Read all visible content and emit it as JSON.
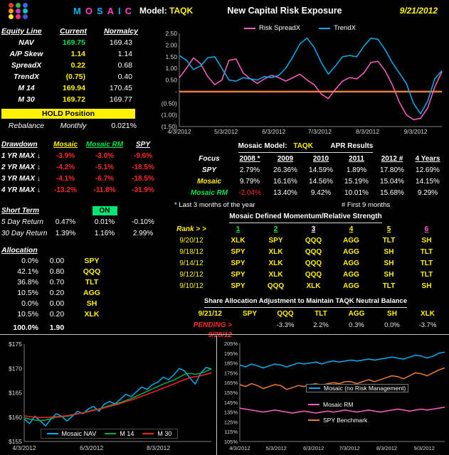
{
  "header": {
    "logo_dots": [
      "#e33b2e",
      "#3bb54a",
      "#3366ff",
      "#ff9900",
      "#c338c3",
      "#00c7be",
      "#ffe333",
      "#ff2d78",
      "#4455dd"
    ],
    "brand_letters": [
      {
        "ch": "M",
        "c": "#00B0F0"
      },
      {
        "ch": "O",
        "c": "#FF40C4"
      },
      {
        "ch": "S",
        "c": "#00B0F0"
      },
      {
        "ch": "A",
        "c": "#FF40C4"
      },
      {
        "ch": "I",
        "c": "#00B0F0"
      },
      {
        "ch": "C",
        "c": "#FF40C4"
      }
    ],
    "model_label": "Model:",
    "model_value": "TAQK",
    "title": "New Capital Risk Exposure",
    "date": "9/21/2012"
  },
  "equity": {
    "col_headers": [
      "Equity Line",
      "Current",
      "Normalcy"
    ],
    "rows": [
      {
        "label": "NAV",
        "current": "169.75",
        "normal": "169.43",
        "cc": "green"
      },
      {
        "label": "A/P Skew",
        "current": "1.14",
        "normal": "1.14",
        "cc": "yellow"
      },
      {
        "label": "SpreadX",
        "current": "0.22",
        "normal": "0.68",
        "cc": "yellow"
      },
      {
        "label": "TrendX",
        "current": "(0.75)",
        "normal": "0.40",
        "cc": "yellow"
      },
      {
        "label": "M 14",
        "current": "169.94",
        "normal": "170.45",
        "cc": "yellow"
      },
      {
        "label": "M 30",
        "current": "169.72",
        "normal": "169.77",
        "cc": "yellow"
      }
    ],
    "hold_banner": "HOLD Position",
    "hold_bg": "#FFF200",
    "rebalance_label": "Rebalance",
    "rebalance_mode": "Monthly",
    "rebalance_value": "0.021%"
  },
  "drawdown": {
    "col_headers": [
      "Drawdown",
      "Mosaic",
      "Mosaic RM",
      "SPY"
    ],
    "rows": [
      {
        "label": "1 YR MAX ↓",
        "v": [
          "-3.9%",
          "-3.0%",
          "-9.6%"
        ]
      },
      {
        "label": "2 YR MAX ↓",
        "v": [
          "-4.2%",
          "-5.1%",
          "-18.5%"
        ]
      },
      {
        "label": "3 YR MAX ↓",
        "v": [
          "-4.1%",
          "-6.7%",
          "-18.5%"
        ]
      },
      {
        "label": "4 YR MAX ↓",
        "v": [
          "-13.2%",
          "-11.8%",
          "-31.9%"
        ]
      }
    ]
  },
  "short_term": {
    "title": "Short Term",
    "status": "ON",
    "status_bg": "#00E673",
    "rows": [
      {
        "label": "5 Day Return",
        "v": [
          "0.47%",
          "0.01%",
          "-0.10%"
        ]
      },
      {
        "label": "30 Day Return",
        "v": [
          "1.39%",
          "1.16%",
          "2.99%"
        ]
      }
    ]
  },
  "allocation": {
    "title": "Allocation",
    "rows": [
      {
        "pct": "0.0%",
        "w": "0.00",
        "t": "SPY"
      },
      {
        "pct": "42.1%",
        "w": "0.80",
        "t": "QQQ"
      },
      {
        "pct": "36.8%",
        "w": "0.70",
        "t": "TLT"
      },
      {
        "pct": "10.5%",
        "w": "0.20",
        "t": "AGG"
      },
      {
        "pct": "0.0%",
        "w": "0.00",
        "t": "SH"
      },
      {
        "pct": "10.5%",
        "w": "0.20",
        "t": "XLK"
      }
    ],
    "total_pct": "100.0%",
    "total_w": "1.90"
  },
  "apr": {
    "title_model_label": "Mosaic Model:",
    "title_model": "TAQK",
    "title_results": "APR Results",
    "focus_label": "Focus",
    "year_headers": [
      "2008 *",
      "2009",
      "2010",
      "2011",
      "2012 #",
      "4 Years"
    ],
    "rows": [
      {
        "label": "SPY",
        "lc": "white",
        "v": [
          "2.79%",
          "26.36%",
          "14.59%",
          "1.89%",
          "17.80%",
          "12.69%"
        ]
      },
      {
        "label": "Mosaic",
        "lc": "yellow",
        "v": [
          "9.79%",
          "16.16%",
          "14.56%",
          "15.19%",
          "15.04%",
          "14.15%"
        ]
      },
      {
        "label": "Mosaic RM",
        "lc": "green",
        "v": [
          "-2.04%",
          "13.40%",
          "9.42%",
          "10.01%",
          "15.68%",
          "9.29%"
        ],
        "c": [
          "red"
        ]
      }
    ],
    "footnote_left": "*  Last 3 months of the year",
    "footnote_right": "#  First 9 months"
  },
  "momentum": {
    "title": "Mosaic Defined Momentum/Relative Strength",
    "rank_label": "Rank > >",
    "ranks": [
      {
        "n": "1",
        "c": "green"
      },
      {
        "n": "2",
        "c": "green"
      },
      {
        "n": "3",
        "c": "white"
      },
      {
        "n": "4",
        "c": "yellow"
      },
      {
        "n": "5",
        "c": "yellow"
      },
      {
        "n": "6",
        "c": "magenta"
      }
    ],
    "rows": [
      {
        "date": "9/20/12",
        "v": [
          "XLK",
          "SPY",
          "QQQ",
          "AGG",
          "TLT",
          "SH"
        ]
      },
      {
        "date": "9/18/12",
        "v": [
          "SPY",
          "XLK",
          "QQQ",
          "AGG",
          "SH",
          "TLT"
        ]
      },
      {
        "date": "9/14/12",
        "v": [
          "SPY",
          "XLK",
          "QQQ",
          "AGG",
          "SH",
          "TLT"
        ]
      },
      {
        "date": "9/12/12",
        "v": [
          "SPY",
          "XLK",
          "QQQ",
          "AGG",
          "SH",
          "TLT"
        ]
      },
      {
        "date": "9/10/12",
        "v": [
          "SPY",
          "QQQ",
          "XLK",
          "AGG",
          "TLT",
          "SH"
        ]
      }
    ]
  },
  "share_adjust": {
    "title": "Share Allocation Adjustment to Maintain TAQK Neutral Balance",
    "date_current": "9/21/12",
    "tickers": [
      "SPY",
      "QQQ",
      "TLT",
      "AGG",
      "SH",
      "XLK"
    ],
    "pending_label": "PENDING >",
    "date_pending": "9/28/12",
    "values": [
      "",
      "-3.3%",
      "2.2%",
      "0.3%",
      "0.0%",
      "-3.7%"
    ]
  },
  "chart_data": [
    {
      "id": "spread",
      "type": "line",
      "title": "",
      "xlabel": "",
      "ylabel": "",
      "ylim": [
        -1.5,
        2.5
      ],
      "legend_position": "top",
      "yticks": [
        {
          "v": 2.5,
          "l": "2.50"
        },
        {
          "v": 2.0,
          "l": "2.00"
        },
        {
          "v": 1.5,
          "l": "1.50"
        },
        {
          "v": 1.0,
          "l": "1.00"
        },
        {
          "v": 0.5,
          "l": "0.50"
        },
        {
          "v": 0,
          "l": "-"
        },
        {
          "v": -0.5,
          "l": "(0.50)"
        },
        {
          "v": -1.0,
          "l": "(1.00)"
        },
        {
          "v": -1.5,
          "l": "(1.50)"
        }
      ],
      "xticks": [
        {
          "f": 0.0,
          "l": "4/3/2012"
        },
        {
          "f": 0.178,
          "l": "5/3/2012"
        },
        {
          "f": 0.36,
          "l": "6/3/2012"
        },
        {
          "f": 0.535,
          "l": "7/3/2012"
        },
        {
          "f": 0.717,
          "l": "8/3/2012"
        },
        {
          "f": 0.9,
          "l": "9/3/2012"
        }
      ],
      "zero_line": {
        "v": 0,
        "color": "#ED7D31"
      },
      "series": [
        {
          "name": "Risk SpreadX",
          "color": "#FF5FC4",
          "values": [
            0.6,
            1.0,
            1.45,
            1.2,
            0.65,
            0.3,
            0.5,
            1.35,
            1.4,
            0.8,
            0.55,
            0.35,
            0.55,
            0.7,
            0.6,
            0.45,
            0.6,
            0.75,
            0.5,
            0.3,
            -0.1,
            -0.3,
            0.1,
            0.45,
            0.6,
            0.55,
            0.8,
            1.25,
            1.3,
            0.9,
            0.3,
            -0.45,
            -1.0,
            -1.2,
            -1.15,
            -0.7,
            0.2,
            0.85
          ]
        },
        {
          "name": "TrendX",
          "color": "#00B0F0",
          "values": [
            1.55,
            1.35,
            0.95,
            1.1,
            1.45,
            1.5,
            1.0,
            0.5,
            0.45,
            0.6,
            0.55,
            0.5,
            0.65,
            0.6,
            0.7,
            1.0,
            1.5,
            2.05,
            2.3,
            1.9,
            1.25,
            0.75,
            1.1,
            1.5,
            1.55,
            1.5,
            1.95,
            2.3,
            2.25,
            1.8,
            1.25,
            0.8,
            0.35,
            -0.5,
            -0.95,
            -0.4,
            0.55,
            0.9
          ]
        }
      ]
    },
    {
      "id": "nav",
      "type": "line",
      "title": "",
      "xlabel": "",
      "ylabel": "",
      "ylim": [
        155,
        175
      ],
      "legend_position": "bottom-inside",
      "yticks": [
        {
          "v": 175,
          "l": "$175"
        },
        {
          "v": 170,
          "l": "$170"
        },
        {
          "v": 165,
          "l": "$165"
        },
        {
          "v": 160,
          "l": "$160"
        },
        {
          "v": 155,
          "l": "$155"
        }
      ],
      "xticks": [
        {
          "f": 0.0,
          "l": "4/3/2012"
        },
        {
          "f": 0.36,
          "l": "6/3/2012"
        },
        {
          "f": 0.717,
          "l": "8/3/2012"
        }
      ],
      "series": [
        {
          "name": "Mosaic NAV",
          "color": "#00B0F0",
          "values": [
            159.6,
            158.7,
            160.2,
            159.2,
            158.2,
            159.6,
            160.7,
            160.2,
            159.2,
            160.2,
            161.2,
            160.7,
            161.7,
            162.2,
            161.2,
            162.7,
            163.2,
            162.7,
            163.7,
            164.7,
            164.2,
            165.2,
            166.2,
            165.7,
            166.7,
            167.2,
            168.2,
            167.7,
            168.7,
            170.0,
            169.5,
            168.0,
            166.8,
            169.0,
            170.2,
            169.9
          ]
        },
        {
          "name": "M 14",
          "color": "#00B050",
          "values": [
            159.9,
            159.6,
            159.4,
            159.3,
            159.4,
            159.7,
            160.0,
            160.1,
            160.2,
            160.4,
            160.7,
            160.9,
            161.2,
            161.5,
            161.7,
            162.0,
            162.4,
            162.7,
            163.0,
            163.4,
            163.8,
            164.3,
            164.8,
            165.3,
            165.8,
            166.3,
            166.8,
            167.2,
            167.6,
            168.2,
            168.8,
            169.0,
            168.8,
            169.0,
            169.4,
            169.9
          ]
        },
        {
          "name": "M 30",
          "color": "#FF2020",
          "values": [
            160.3,
            160.1,
            160.0,
            159.9,
            159.9,
            160.0,
            160.1,
            160.2,
            160.3,
            160.5,
            160.7,
            160.9,
            161.1,
            161.4,
            161.6,
            161.9,
            162.2,
            162.5,
            162.8,
            163.2,
            163.5,
            163.9,
            164.3,
            164.7,
            165.1,
            165.5,
            166.0,
            166.4,
            166.8,
            167.3,
            167.7,
            168.1,
            168.3,
            168.5,
            168.8,
            169.1
          ]
        }
      ]
    },
    {
      "id": "bench",
      "type": "line",
      "title": "",
      "xlabel": "",
      "ylabel": "",
      "ylim": [
        105,
        205
      ],
      "legend_position": "right-inside",
      "yticks": [
        {
          "v": 205,
          "l": "205%"
        },
        {
          "v": 195,
          "l": "195%"
        },
        {
          "v": 185,
          "l": "185%"
        },
        {
          "v": 175,
          "l": "175%"
        },
        {
          "v": 165,
          "l": "165%"
        },
        {
          "v": 155,
          "l": "155%"
        },
        {
          "v": 145,
          "l": "145%"
        },
        {
          "v": 135,
          "l": "135%"
        },
        {
          "v": 125,
          "l": "125%"
        },
        {
          "v": 115,
          "l": "115%"
        },
        {
          "v": 105,
          "l": "105%"
        }
      ],
      "xticks": [
        {
          "f": 0.0,
          "l": "4/3/2012"
        },
        {
          "f": 0.178,
          "l": "5/3/2012"
        },
        {
          "f": 0.36,
          "l": "6/3/2012"
        },
        {
          "f": 0.535,
          "l": "7/3/2012"
        },
        {
          "f": 0.717,
          "l": "8/3/2012"
        },
        {
          "f": 0.9,
          "l": "9/3/2012"
        }
      ],
      "series": [
        {
          "name": "Mosaic (no Risk Management)",
          "color": "#00B0F0",
          "values": [
            183,
            181,
            184,
            182,
            180,
            182,
            184,
            183,
            181,
            183,
            185,
            184,
            185,
            186,
            184,
            186,
            187,
            186,
            187,
            188,
            187,
            188,
            189,
            188,
            189,
            190,
            191,
            190,
            189,
            191,
            193,
            192,
            190,
            192,
            195,
            196
          ]
        },
        {
          "name": "Mosaic RM",
          "color": "#FF5FC4",
          "values": [
            139,
            138,
            137,
            136,
            135,
            136,
            137,
            136,
            135,
            134,
            135,
            136,
            135,
            134,
            135,
            136,
            135,
            136,
            137,
            136,
            135,
            136,
            137,
            136,
            135,
            136,
            137,
            138,
            137,
            136,
            137,
            138,
            137,
            138,
            139,
            140
          ]
        },
        {
          "name": "SPY Benchmark",
          "color": "#ED7D31",
          "values": [
            163,
            161,
            164,
            162,
            159,
            161,
            163,
            162,
            158,
            160,
            162,
            161,
            163,
            164,
            162,
            164,
            165,
            164,
            166,
            166,
            164,
            166,
            168,
            166,
            168,
            170,
            172,
            171,
            169,
            172,
            175,
            174,
            172,
            175,
            178,
            180
          ]
        }
      ]
    }
  ]
}
